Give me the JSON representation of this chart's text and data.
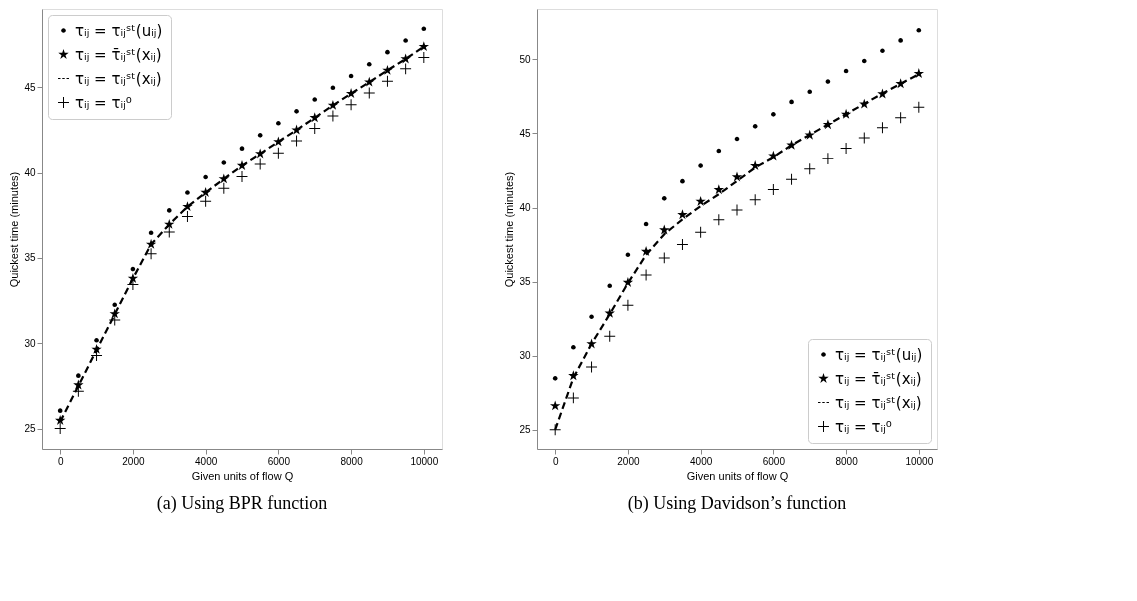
{
  "chart_data": [
    {
      "type": "scatter",
      "title": "(a) Using BPR function",
      "xlabel": "Given units of flow Q",
      "ylabel": "Quickest time (minutes)",
      "x": [
        0,
        500,
        1000,
        1500,
        2000,
        2500,
        3000,
        3500,
        4000,
        4500,
        5000,
        5500,
        6000,
        6500,
        7000,
        7500,
        8000,
        8500,
        9000,
        9500,
        10000
      ],
      "xlim": [
        -500,
        10500
      ],
      "xticks": [
        0,
        2000,
        4000,
        6000,
        8000,
        10000
      ],
      "ylim": [
        23.8,
        49.6
      ],
      "yticks": [
        25,
        30,
        35,
        40,
        45
      ],
      "grid": false,
      "legend": "top left",
      "series": [
        {
          "name": "τᵢⱼ = τᵢⱼˢᵗ(uᵢⱼ)",
          "marker": "circle",
          "color": "#000000",
          "values": [
            26.05,
            28.1,
            30.18,
            32.26,
            34.35,
            36.48,
            37.79,
            38.84,
            39.75,
            40.6,
            41.41,
            42.19,
            42.9,
            43.6,
            44.29,
            44.98,
            45.67,
            46.36,
            47.07,
            47.75,
            48.44
          ]
        },
        {
          "name": "τᵢⱼ = τ̄ᵢⱼˢᵗ(xᵢⱼ)",
          "marker": "star",
          "color": "#000000",
          "values": [
            25.47,
            27.55,
            29.64,
            31.72,
            33.8,
            35.8,
            36.97,
            38.01,
            38.84,
            39.64,
            40.42,
            41.1,
            41.81,
            42.5,
            43.22,
            43.95,
            44.64,
            45.31,
            46.0,
            46.67,
            47.39
          ]
        },
        {
          "name": "τᵢⱼ = τᵢⱼˢᵗ(xᵢⱼ)",
          "type": "line",
          "line_style": "dashed",
          "color": "#000000",
          "values": [
            25.4,
            27.5,
            29.6,
            31.7,
            33.8,
            35.8,
            36.97,
            38.01,
            38.84,
            39.64,
            40.42,
            41.1,
            41.81,
            42.5,
            43.22,
            43.95,
            44.64,
            45.31,
            46.0,
            46.67,
            47.39
          ]
        },
        {
          "name": "τᵢⱼ = τᵢⱼ⁰",
          "marker": "cross",
          "color": "#000000",
          "values": [
            25.0,
            27.19,
            29.28,
            31.36,
            33.44,
            35.25,
            36.52,
            37.43,
            38.33,
            39.09,
            39.78,
            40.51,
            41.14,
            41.86,
            42.59,
            43.32,
            43.98,
            44.67,
            45.36,
            46.09,
            46.76
          ]
        }
      ]
    },
    {
      "type": "scatter",
      "title": "(b) Using Davidson’s function",
      "xlabel": "Given units of flow Q",
      "ylabel": "Quickest time (minutes)",
      "x": [
        0,
        500,
        1000,
        1500,
        2000,
        2500,
        3000,
        3500,
        4000,
        4500,
        5000,
        5500,
        6000,
        6500,
        7000,
        7500,
        8000,
        8500,
        9000,
        9500,
        10000
      ],
      "xlim": [
        -500,
        10500
      ],
      "xticks": [
        0,
        2000,
        4000,
        6000,
        8000,
        10000
      ],
      "ylim": [
        23.7,
        53.4
      ],
      "yticks": [
        25,
        30,
        35,
        40,
        45,
        50
      ],
      "grid": false,
      "legend": "bottom right",
      "series": [
        {
          "name": "τᵢⱼ = τᵢⱼˢᵗ(uᵢⱼ)",
          "marker": "circle",
          "color": "#000000",
          "values": [
            28.47,
            30.57,
            32.63,
            34.72,
            36.81,
            38.89,
            40.62,
            41.78,
            42.83,
            43.81,
            44.63,
            45.48,
            46.29,
            47.13,
            47.81,
            48.5,
            49.21,
            49.89,
            50.58,
            51.28,
            51.97
          ]
        },
        {
          "name": "τᵢⱼ = τ̄ᵢⱼˢᵗ(xᵢⱼ)",
          "marker": "star",
          "color": "#000000",
          "values": [
            26.61,
            28.64,
            30.79,
            32.86,
            34.94,
            37.03,
            38.48,
            39.51,
            40.41,
            41.2,
            42.06,
            42.83,
            43.47,
            44.2,
            44.88,
            45.59,
            46.29,
            46.98,
            47.66,
            48.35,
            49.04
          ]
        },
        {
          "name": "τᵢⱼ = τᵢⱼˢᵗ(xᵢⱼ)",
          "type": "line",
          "line_style": "dashed",
          "color": "#000000",
          "values": [
            25.0,
            28.5,
            30.8,
            32.8,
            34.9,
            36.8,
            38.2,
            39.2,
            40.1,
            40.9,
            41.8,
            42.7,
            43.4,
            44.2,
            44.9,
            45.6,
            46.3,
            47.0,
            47.7,
            48.35,
            49.0
          ]
        },
        {
          "name": "τᵢⱼ = τᵢⱼ⁰",
          "marker": "cross",
          "color": "#000000",
          "values": [
            25.0,
            27.15,
            29.23,
            31.31,
            33.4,
            35.44,
            36.6,
            37.5,
            38.33,
            39.17,
            39.83,
            40.52,
            41.22,
            41.91,
            42.61,
            43.3,
            43.98,
            44.69,
            45.38,
            46.06,
            46.77
          ]
        }
      ]
    }
  ]
}
